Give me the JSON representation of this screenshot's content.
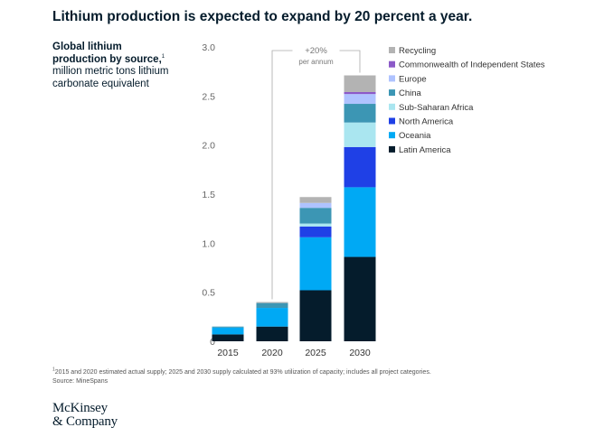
{
  "header": {
    "title": "Lithium production is expected to expand by 20 percent a year.",
    "subtitle_bold": "Global lithium production by source,",
    "subtitle_sup": "1",
    "subtitle_rest": "million metric tons lithium carbonate equivalent"
  },
  "chart_data": {
    "type": "bar",
    "stacked": true,
    "categories": [
      "2015",
      "2020",
      "2025",
      "2030"
    ],
    "ylim": [
      0,
      3.0
    ],
    "yticks": [
      "0",
      "0.5",
      "1.0",
      "1.5",
      "2.0",
      "2.5",
      "3.0"
    ],
    "grid": false,
    "legend_position": "top-right",
    "annotation": {
      "line1": "+20%",
      "line2": "per annum",
      "from": "2020",
      "to": "2030"
    },
    "series": [
      {
        "name": "Latin America",
        "color": "#051c2c",
        "values": [
          0.07,
          0.15,
          0.52,
          0.86
        ]
      },
      {
        "name": "Oceania",
        "color": "#00a9f4",
        "values": [
          0.07,
          0.19,
          0.54,
          0.71
        ]
      },
      {
        "name": "North America",
        "color": "#1f40e6",
        "values": [
          0.0,
          0.0,
          0.11,
          0.41
        ]
      },
      {
        "name": "Sub-Saharan Africa",
        "color": "#aae6f0",
        "values": [
          0.0,
          0.0,
          0.03,
          0.25
        ]
      },
      {
        "name": "China",
        "color": "#3c96b4",
        "values": [
          0.01,
          0.05,
          0.16,
          0.19
        ]
      },
      {
        "name": "Europe",
        "color": "#afc3ff",
        "values": [
          0.0,
          0.0,
          0.05,
          0.1
        ]
      },
      {
        "name": "Commonwealth of Independent States",
        "color": "#8c5ac8",
        "values": [
          0.0,
          0.0,
          0.0,
          0.02
        ]
      },
      {
        "name": "Recycling",
        "color": "#b3b3b3",
        "values": [
          0.0,
          0.01,
          0.06,
          0.17
        ]
      }
    ]
  },
  "footnote": {
    "sup": "1",
    "line1": "2015 and 2020 estimated actual supply; 2025 and 2030 supply calculated at 93% utilization of capacity; includes all project categories.",
    "line2": "Source: MineSpans"
  },
  "logo": {
    "line1": "McKinsey",
    "line2": "& Company"
  }
}
